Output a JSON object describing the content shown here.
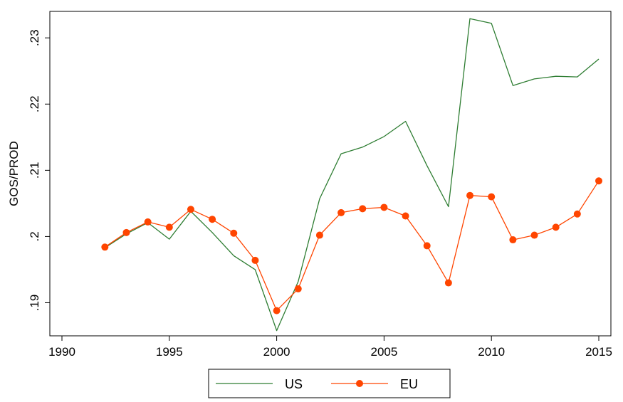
{
  "chart_data": {
    "type": "line",
    "ylabel": "GOS/PROD",
    "xlabel": "",
    "xlim": [
      1990,
      2015
    ],
    "ylim": [
      0.185,
      0.234
    ],
    "x_ticks": [
      1990,
      1995,
      2000,
      2005,
      2010,
      2015
    ],
    "x_tick_labels": [
      "1990",
      "1995",
      "2000",
      "2005",
      "2010",
      "2015"
    ],
    "y_ticks": [
      0.19,
      0.2,
      0.21,
      0.22,
      0.23
    ],
    "y_tick_labels": [
      ".19",
      ".2",
      ".21",
      ".22",
      ".23"
    ],
    "grid": false,
    "legend_position": "bottom",
    "x": [
      1992,
      1993,
      1994,
      1995,
      1996,
      1997,
      1998,
      1999,
      2000,
      2001,
      2002,
      2003,
      2004,
      2005,
      2006,
      2007,
      2008,
      2009,
      2010,
      2011,
      2012,
      2013,
      2014,
      2015
    ],
    "series": [
      {
        "name": "US",
        "color": "#2e7d32",
        "marker": "none",
        "values": [
          0.1983,
          0.2004,
          0.2021,
          0.1996,
          0.2038,
          0.2006,
          0.1971,
          0.195,
          0.1858,
          0.1932,
          0.2057,
          0.2125,
          0.2135,
          0.2151,
          0.2174,
          0.2107,
          0.2045,
          0.2329,
          0.2322,
          0.2228,
          0.2238,
          0.2242,
          0.2241,
          0.2268
        ]
      },
      {
        "name": "EU",
        "color": "#ff4500",
        "marker": "circle",
        "values": [
          0.1984,
          0.2006,
          0.2022,
          0.2014,
          0.2041,
          0.2026,
          0.2005,
          0.1964,
          0.1888,
          0.1921,
          0.2002,
          0.2036,
          0.2042,
          0.2044,
          0.2031,
          0.1986,
          0.193,
          0.2062,
          0.206,
          0.1995,
          0.2002,
          0.2014,
          0.2034,
          0.2084
        ]
      }
    ]
  }
}
